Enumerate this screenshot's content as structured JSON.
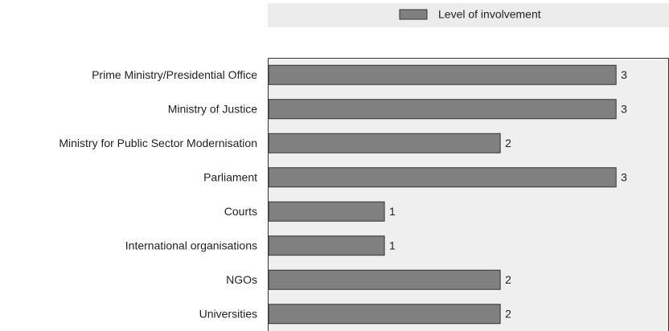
{
  "chart_data": {
    "type": "barh",
    "legend": "Level of involvement",
    "categories": [
      "Prime Ministry/Presidential Office",
      "Ministry of Justice",
      "Ministry for Public Sector Modernisation",
      "Parliament",
      "Courts",
      "International organisations",
      "NGOs",
      "Universities"
    ],
    "values": [
      3,
      3,
      2,
      3,
      1,
      1,
      2,
      2
    ],
    "color": "#808080",
    "xlim": [
      0,
      3.45
    ]
  }
}
